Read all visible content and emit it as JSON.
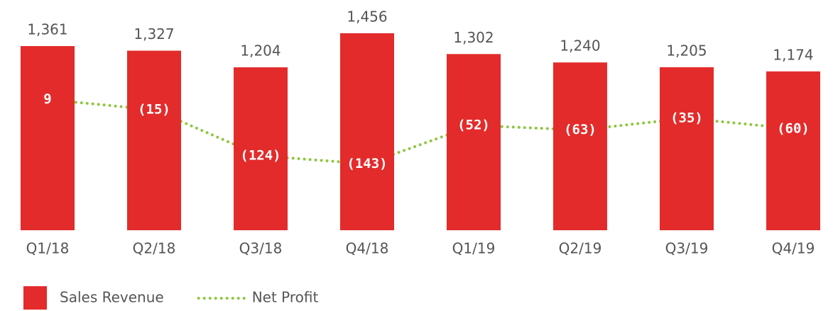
{
  "chart_data": {
    "type": "bar_line",
    "categories": [
      "Q1/18",
      "Q2/18",
      "Q3/18",
      "Q4/18",
      "Q1/19",
      "Q2/19",
      "Q3/19",
      "Q4/19"
    ],
    "series": [
      {
        "name": "Sales Revenue",
        "type": "bar",
        "color": "#e32b2b",
        "values": [
          1361,
          1327,
          1204,
          1456,
          1302,
          1240,
          1205,
          1174
        ],
        "value_labels": [
          "1,361",
          "1,327",
          "1,204",
          "1,456",
          "1,302",
          "1,240",
          "1,205",
          "1,174"
        ]
      },
      {
        "name": "Net Profit",
        "type": "line",
        "axis": "y2",
        "color": "#8dc63f",
        "values": [
          9,
          -15,
          -124,
          -143,
          -52,
          -63,
          -35,
          -60
        ],
        "value_labels": [
          "9",
          "(15)",
          "(124)",
          "(143)",
          "(52)",
          "(63)",
          "(35)",
          "(60)"
        ]
      }
    ],
    "ylim": [
      0,
      1500
    ],
    "y2lim": [
      -300,
      180
    ],
    "legend": "bottom-left"
  }
}
